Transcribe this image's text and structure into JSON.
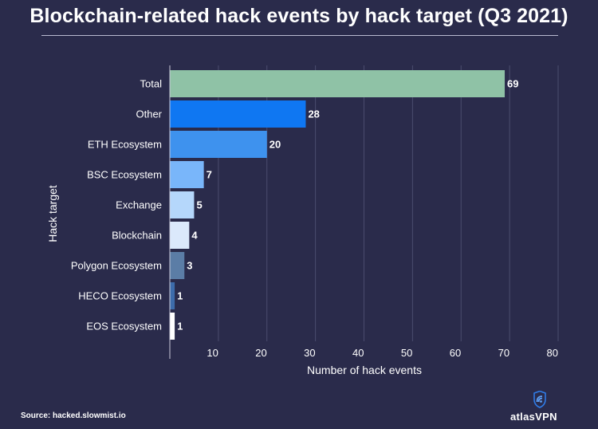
{
  "chart_data": {
    "type": "bar",
    "orientation": "horizontal",
    "title": "Blockchain-related hack events by hack target (Q3 2021)",
    "xlabel": "Number of hack events",
    "ylabel": "Hack target",
    "xlim": [
      0,
      80
    ],
    "x_ticks": [
      10,
      20,
      30,
      40,
      50,
      60,
      70,
      80
    ],
    "categories": [
      "Total",
      "Other",
      "ETH Ecosystem",
      "BSC Ecosystem",
      "Exchange",
      "Blockchain",
      "Polygon Ecosystem",
      "HECO Ecosystem",
      "EOS Ecosystem"
    ],
    "values": [
      69,
      28,
      20,
      7,
      5,
      4,
      3,
      1,
      1
    ],
    "bar_colors": [
      "#8fc2a6",
      "#0f77f2",
      "#3e92ee",
      "#79b6fa",
      "#b5d7fb",
      "#dbe9fb",
      "#5b7da6",
      "#3d6cab",
      "#ffffff"
    ],
    "grid": true
  },
  "footer": {
    "source": "Source: hacked.slowmist.io",
    "brand": "atlasVPN"
  }
}
